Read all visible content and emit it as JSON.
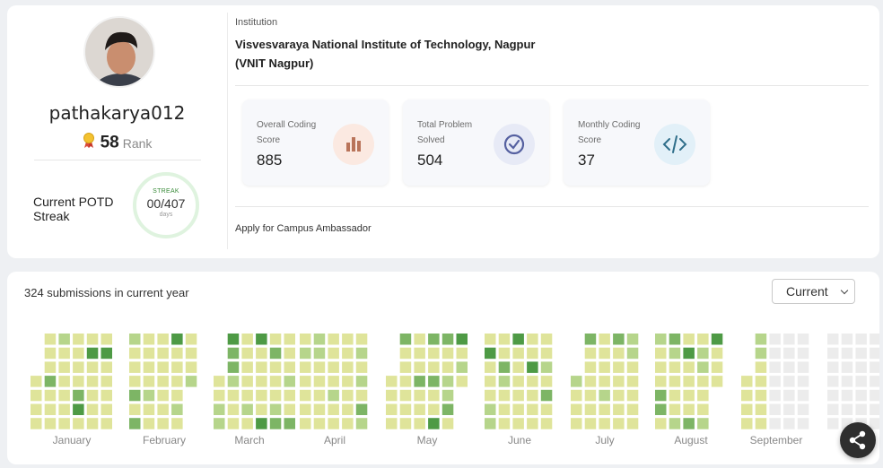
{
  "profile": {
    "username": "pathakarya012",
    "rank_value": "58",
    "rank_label": "Rank",
    "potd_label": "Current POTD Streak",
    "streak_label": "STREAK",
    "streak_value": "00/407",
    "streak_unit": "days"
  },
  "institution": {
    "label": "Institution",
    "name_line1": "Visvesvaraya National Institute of Technology, Nagpur",
    "name_line2": "(VNIT Nagpur)"
  },
  "stats": [
    {
      "label": "Overall Coding Score",
      "value": "885",
      "icon": "bar-chart-icon",
      "icon_bg": "#fbe9e1",
      "icon_color": "#b9745a"
    },
    {
      "label": "Total Problem Solved",
      "value": "504",
      "icon": "check-circle-icon",
      "icon_bg": "#e7eaf6",
      "icon_color": "#5560a0"
    },
    {
      "label": "Monthly Coding Score",
      "value": "37",
      "icon": "code-icon",
      "icon_bg": "#e2f0f8",
      "icon_color": "#2f6e8a"
    }
  ],
  "apply_link": "Apply for Campus Ambassador",
  "submissions": {
    "title": "324 submissions in current year",
    "year_select": "Current",
    "months": [
      "January",
      "February",
      "March",
      "April",
      "May",
      "June",
      "July",
      "August",
      "September"
    ],
    "colors": {
      "empty": "#ececec",
      "level1": "#dfe49a",
      "level2": "#b6d58b",
      "level3": "#7db565",
      "level4": "#4e9a45"
    }
  }
}
